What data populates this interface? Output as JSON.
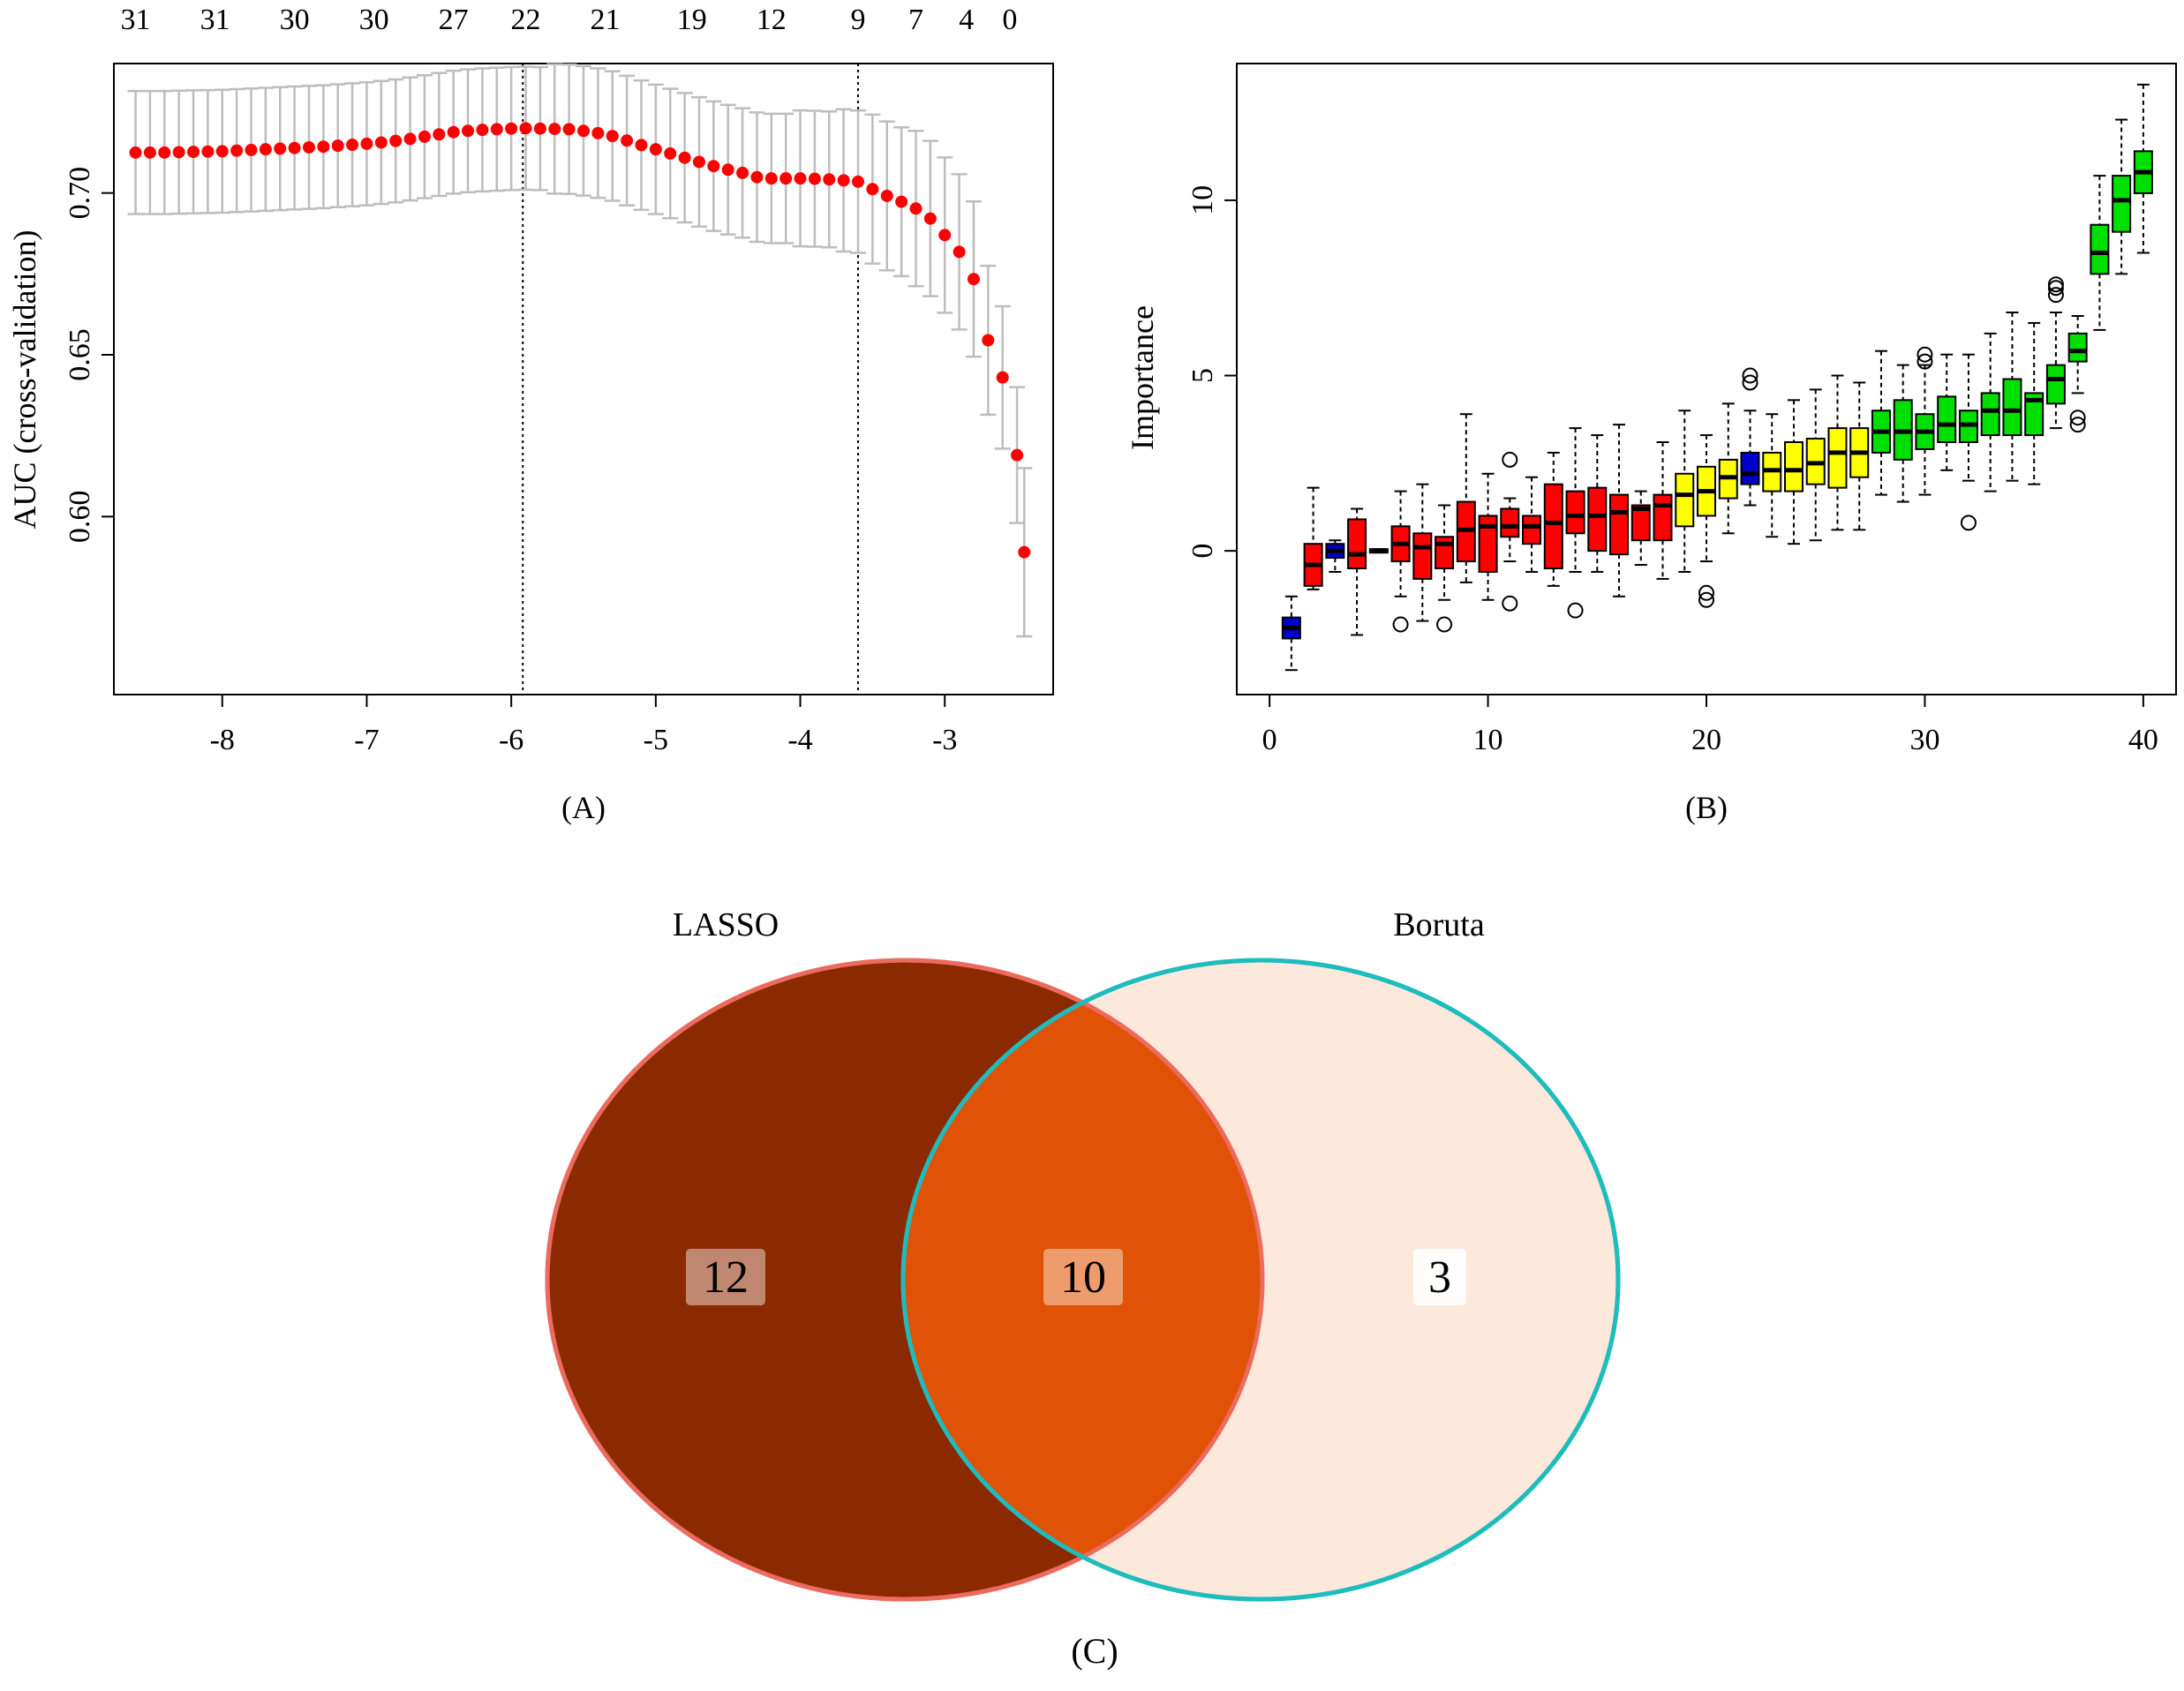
{
  "chart_data": [
    {
      "type": "scatter",
      "panel_label": "(A)",
      "ylabel": "AUC (cross-validation)",
      "xlabel": "",
      "xlim": [
        -8.75,
        -2.25
      ],
      "ylim": [
        0.545,
        0.74
      ],
      "x_ticks": [
        -8,
        -7,
        -6,
        -5,
        -4,
        -3
      ],
      "x_tick_labels": [
        "-8",
        "-7",
        "-6",
        "-5",
        "-4",
        "-3"
      ],
      "y_ticks": [
        0.6,
        0.65,
        0.7
      ],
      "y_tick_labels": [
        "0.60",
        "0.65",
        "0.70"
      ],
      "top_ticks": [
        -8.6,
        -8.05,
        -7.5,
        -6.95,
        -6.4,
        -5.9,
        -5.35,
        -4.75,
        -4.2,
        -3.6,
        -3.2,
        -2.85,
        -2.55
      ],
      "top_tick_labels": [
        "31",
        "31",
        "30",
        "30",
        "27",
        "22",
        "21",
        "19",
        "12",
        "9",
        "7",
        "4",
        "0"
      ],
      "vlines": [
        -5.92,
        -3.6
      ],
      "points": {
        "x": [
          -8.6,
          -8.5,
          -8.4,
          -8.3,
          -8.2,
          -8.1,
          -8.0,
          -7.9,
          -7.8,
          -7.7,
          -7.6,
          -7.5,
          -7.4,
          -7.3,
          -7.2,
          -7.1,
          -7.0,
          -6.9,
          -6.8,
          -6.7,
          -6.6,
          -6.5,
          -6.4,
          -6.3,
          -6.2,
          -6.1,
          -6.0,
          -5.9,
          -5.8,
          -5.7,
          -5.6,
          -5.5,
          -5.4,
          -5.3,
          -5.2,
          -5.1,
          -5.0,
          -4.9,
          -4.8,
          -4.7,
          -4.6,
          -4.5,
          -4.4,
          -4.3,
          -4.2,
          -4.1,
          -4.0,
          -3.9,
          -3.8,
          -3.7,
          -3.6,
          -3.5,
          -3.4,
          -3.3,
          -3.2,
          -3.1,
          -3.0,
          -2.9,
          -2.8,
          -2.7,
          -2.6,
          -2.5
        ],
        "y": [
          0.7125,
          0.7125,
          0.7125,
          0.7126,
          0.7127,
          0.7128,
          0.7129,
          0.7131,
          0.7133,
          0.7135,
          0.7137,
          0.7139,
          0.7141,
          0.7143,
          0.7146,
          0.7149,
          0.7152,
          0.7156,
          0.7161,
          0.7167,
          0.7174,
          0.7181,
          0.7188,
          0.7192,
          0.7195,
          0.7197,
          0.7199,
          0.72,
          0.7199,
          0.7198,
          0.7197,
          0.7192,
          0.7185,
          0.7176,
          0.7162,
          0.7148,
          0.7135,
          0.7122,
          0.7109,
          0.7096,
          0.7083,
          0.7072,
          0.7062,
          0.7049,
          0.7045,
          0.7045,
          0.7045,
          0.7044,
          0.7042,
          0.7039,
          0.7035,
          0.7012,
          0.6991,
          0.6973,
          0.6952,
          0.6921,
          0.687,
          0.6818,
          0.6734,
          0.6545,
          0.643,
          0.619
        ],
        "err": [
          0.019,
          0.019,
          0.019,
          0.019,
          0.019,
          0.019,
          0.019,
          0.019,
          0.019,
          0.019,
          0.019,
          0.019,
          0.019,
          0.019,
          0.019,
          0.019,
          0.019,
          0.019,
          0.019,
          0.019,
          0.019,
          0.019,
          0.019,
          0.019,
          0.019,
          0.019,
          0.019,
          0.019,
          0.019,
          0.02,
          0.02,
          0.02,
          0.02,
          0.02,
          0.02,
          0.02,
          0.02,
          0.02,
          0.02,
          0.02,
          0.02,
          0.02,
          0.02,
          0.02,
          0.02,
          0.02,
          0.021,
          0.021,
          0.021,
          0.022,
          0.022,
          0.023,
          0.023,
          0.023,
          0.024,
          0.024,
          0.024,
          0.024,
          0.024,
          0.023,
          0.022,
          0.021
        ]
      },
      "last_point": {
        "x": -2.45,
        "y": 0.589,
        "err": 0.026
      },
      "point_color": "#ff0000",
      "errorbar_color": "#bdbdbd"
    },
    {
      "type": "box",
      "panel_label": "(B)",
      "ylabel": "Importance",
      "xlabel": "",
      "xlim": [
        -1.5,
        41.5
      ],
      "ylim": [
        -4.1,
        13.9
      ],
      "x_ticks": [
        0,
        10,
        20,
        30,
        40
      ],
      "x_tick_labels": [
        "0",
        "10",
        "20",
        "30",
        "40"
      ],
      "y_ticks": [
        0,
        5,
        10
      ],
      "y_tick_labels": [
        "0",
        "5",
        "10"
      ],
      "boxes": [
        {
          "x": 1,
          "color": "blue",
          "q1": -2.5,
          "med": -2.2,
          "q3": -1.9,
          "wlo": -3.4,
          "whi": -1.3,
          "out": []
        },
        {
          "x": 2,
          "color": "red",
          "q1": -1.0,
          "med": -0.4,
          "q3": 0.2,
          "wlo": -1.1,
          "whi": 1.8,
          "out": []
        },
        {
          "x": 3,
          "color": "blue",
          "q1": -0.2,
          "med": 0.0,
          "q3": 0.2,
          "wlo": -0.6,
          "whi": 0.3,
          "out": []
        },
        {
          "x": 4,
          "color": "red",
          "q1": -0.5,
          "med": -0.1,
          "q3": 0.9,
          "wlo": -2.4,
          "whi": 1.2,
          "out": []
        },
        {
          "x": 5,
          "color": "black",
          "q1": -0.05,
          "med": 0.0,
          "q3": 0.05,
          "wlo": -0.05,
          "whi": 0.05,
          "out": []
        },
        {
          "x": 6,
          "color": "red",
          "q1": -0.3,
          "med": 0.2,
          "q3": 0.7,
          "wlo": -1.3,
          "whi": 1.7,
          "out": [
            -2.1
          ]
        },
        {
          "x": 7,
          "color": "red",
          "q1": -0.8,
          "med": 0.1,
          "q3": 0.5,
          "wlo": -2.0,
          "whi": 1.9,
          "out": []
        },
        {
          "x": 8,
          "color": "red",
          "q1": -0.5,
          "med": 0.2,
          "q3": 0.4,
          "wlo": -1.4,
          "whi": 1.3,
          "out": [
            -2.1
          ]
        },
        {
          "x": 9,
          "color": "red",
          "q1": -0.3,
          "med": 0.6,
          "q3": 1.4,
          "wlo": -0.9,
          "whi": 3.9,
          "out": []
        },
        {
          "x": 10,
          "color": "red",
          "q1": -0.6,
          "med": 0.7,
          "q3": 1.0,
          "wlo": -1.4,
          "whi": 2.2,
          "out": []
        },
        {
          "x": 11,
          "color": "red",
          "q1": 0.4,
          "med": 0.7,
          "q3": 1.2,
          "wlo": -0.3,
          "whi": 1.5,
          "out": [
            2.6,
            -1.5
          ]
        },
        {
          "x": 12,
          "color": "red",
          "q1": 0.2,
          "med": 0.7,
          "q3": 1.0,
          "wlo": -0.6,
          "whi": 2.1,
          "out": []
        },
        {
          "x": 13,
          "color": "red",
          "q1": -0.5,
          "med": 0.8,
          "q3": 1.9,
          "wlo": -1.0,
          "whi": 2.8,
          "out": []
        },
        {
          "x": 14,
          "color": "red",
          "q1": 0.5,
          "med": 1.0,
          "q3": 1.7,
          "wlo": -0.6,
          "whi": 3.5,
          "out": [
            -1.7
          ]
        },
        {
          "x": 15,
          "color": "red",
          "q1": 0.0,
          "med": 1.0,
          "q3": 1.8,
          "wlo": -0.6,
          "whi": 3.3,
          "out": []
        },
        {
          "x": 16,
          "color": "red",
          "q1": -0.1,
          "med": 1.1,
          "q3": 1.6,
          "wlo": -1.3,
          "whi": 3.6,
          "out": []
        },
        {
          "x": 17,
          "color": "red",
          "q1": 0.3,
          "med": 1.2,
          "q3": 1.3,
          "wlo": -0.4,
          "whi": 1.7,
          "out": []
        },
        {
          "x": 18,
          "color": "red",
          "q1": 0.3,
          "med": 1.3,
          "q3": 1.6,
          "wlo": -0.8,
          "whi": 3.1,
          "out": []
        },
        {
          "x": 19,
          "color": "yellow",
          "q1": 0.7,
          "med": 1.6,
          "q3": 2.2,
          "wlo": -0.6,
          "whi": 4.0,
          "out": []
        },
        {
          "x": 20,
          "color": "yellow",
          "q1": 1.0,
          "med": 1.7,
          "q3": 2.4,
          "wlo": -0.3,
          "whi": 3.3,
          "out": [
            -1.2,
            -1.4
          ]
        },
        {
          "x": 21,
          "color": "yellow",
          "q1": 1.5,
          "med": 2.1,
          "q3": 2.6,
          "wlo": 0.5,
          "whi": 4.2,
          "out": []
        },
        {
          "x": 22,
          "color": "blue",
          "q1": 1.9,
          "med": 2.2,
          "q3": 2.8,
          "wlo": 1.3,
          "whi": 4.0,
          "out": [
            4.8,
            5.0
          ]
        },
        {
          "x": 23,
          "color": "yellow",
          "q1": 1.7,
          "med": 2.3,
          "q3": 2.8,
          "wlo": 0.4,
          "whi": 3.9,
          "out": []
        },
        {
          "x": 24,
          "color": "yellow",
          "q1": 1.7,
          "med": 2.3,
          "q3": 3.1,
          "wlo": 0.2,
          "whi": 4.3,
          "out": []
        },
        {
          "x": 25,
          "color": "yellow",
          "q1": 1.9,
          "med": 2.5,
          "q3": 3.2,
          "wlo": 0.3,
          "whi": 4.6,
          "out": []
        },
        {
          "x": 26,
          "color": "yellow",
          "q1": 1.8,
          "med": 2.8,
          "q3": 3.5,
          "wlo": 0.6,
          "whi": 5.0,
          "out": []
        },
        {
          "x": 27,
          "color": "yellow",
          "q1": 2.1,
          "med": 2.8,
          "q3": 3.5,
          "wlo": 0.6,
          "whi": 4.8,
          "out": []
        },
        {
          "x": 28,
          "color": "green",
          "q1": 2.8,
          "med": 3.4,
          "q3": 4.0,
          "wlo": 1.6,
          "whi": 5.7,
          "out": []
        },
        {
          "x": 29,
          "color": "green",
          "q1": 2.6,
          "med": 3.4,
          "q3": 4.3,
          "wlo": 1.4,
          "whi": 5.3,
          "out": []
        },
        {
          "x": 30,
          "color": "green",
          "q1": 2.9,
          "med": 3.4,
          "q3": 3.9,
          "wlo": 1.6,
          "whi": 5.3,
          "out": [
            5.4,
            5.6
          ]
        },
        {
          "x": 31,
          "color": "green",
          "q1": 3.1,
          "med": 3.6,
          "q3": 4.4,
          "wlo": 2.3,
          "whi": 5.6,
          "out": []
        },
        {
          "x": 32,
          "color": "green",
          "q1": 3.1,
          "med": 3.6,
          "q3": 4.0,
          "wlo": 2.0,
          "whi": 5.6,
          "out": [
            0.8
          ]
        },
        {
          "x": 33,
          "color": "green",
          "q1": 3.3,
          "med": 4.0,
          "q3": 4.5,
          "wlo": 1.7,
          "whi": 6.2,
          "out": []
        },
        {
          "x": 34,
          "color": "green",
          "q1": 3.3,
          "med": 4.0,
          "q3": 4.9,
          "wlo": 2.0,
          "whi": 6.8,
          "out": []
        },
        {
          "x": 35,
          "color": "green",
          "q1": 3.3,
          "med": 4.3,
          "q3": 4.5,
          "wlo": 1.9,
          "whi": 6.5,
          "out": []
        },
        {
          "x": 36,
          "color": "green",
          "q1": 4.2,
          "med": 4.9,
          "q3": 5.3,
          "wlo": 3.5,
          "whi": 6.8,
          "out": [
            7.3,
            7.5,
            7.6
          ]
        },
        {
          "x": 37,
          "color": "green",
          "q1": 5.4,
          "med": 5.7,
          "q3": 6.2,
          "wlo": 4.5,
          "whi": 6.7,
          "out": [
            3.6,
            3.8
          ]
        },
        {
          "x": 38,
          "color": "green",
          "q1": 7.9,
          "med": 8.5,
          "q3": 9.3,
          "wlo": 6.3,
          "whi": 10.7,
          "out": []
        },
        {
          "x": 39,
          "color": "green",
          "q1": 9.1,
          "med": 10.0,
          "q3": 10.7,
          "wlo": 7.9,
          "whi": 12.3,
          "out": []
        },
        {
          "x": 40,
          "color": "green",
          "q1": 10.2,
          "med": 10.8,
          "q3": 11.4,
          "wlo": 8.5,
          "whi": 13.3,
          "out": []
        }
      ],
      "colors": {
        "red": "#ff0000",
        "green": "#00e000",
        "yellow": "#ffff00",
        "blue": "#0000cc",
        "black": "#000000"
      }
    },
    {
      "type": "venn",
      "panel_label": "(C)",
      "sets": [
        {
          "name": "LASSO",
          "only_count": "12",
          "fill": "#8b2a00",
          "stroke": "#ec6a5e"
        },
        {
          "name": "Boruta",
          "only_count": "3",
          "fill": "#fde9dc",
          "stroke": "#1ebcbc"
        }
      ],
      "intersection": {
        "count": "10",
        "fill": "#e05205"
      }
    }
  ]
}
